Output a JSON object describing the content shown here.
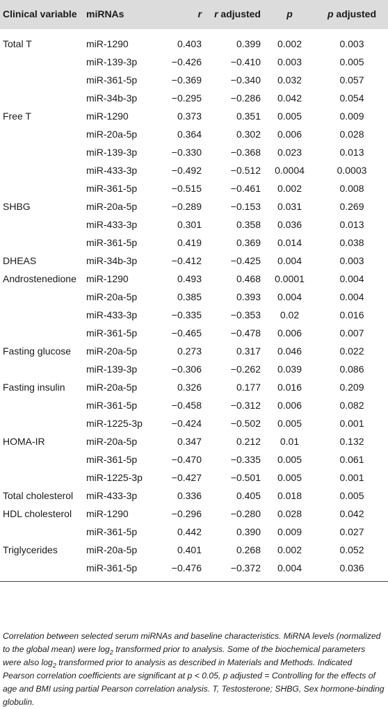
{
  "table": {
    "headers": {
      "clinical_variable": "Clinical variable",
      "mirnas": "miRNAs",
      "r": "r",
      "r_adjusted_italic": "r",
      "r_adjusted_rest": " adjusted",
      "p": "p",
      "p_adjusted_italic": "p",
      "p_adjusted_rest": " adjusted"
    },
    "rows": [
      {
        "variable": "Total T",
        "mirna": "miR-1290",
        "r": "0.403",
        "r_adj": "0.399",
        "p": "0.002",
        "p_adj": "0.003"
      },
      {
        "variable": "",
        "mirna": "miR-139-3p",
        "r": "−0.426",
        "r_adj": "−0.410",
        "p": "0.003",
        "p_adj": "0.005"
      },
      {
        "variable": "",
        "mirna": "miR-361-5p",
        "r": "−0.369",
        "r_adj": "−0.340",
        "p": "0.032",
        "p_adj": "0.057"
      },
      {
        "variable": "",
        "mirna": "miR-34b-3p",
        "r": "−0.295",
        "r_adj": "−0.286",
        "p": "0.042",
        "p_adj": "0.054"
      },
      {
        "variable": "Free T",
        "mirna": "miR-1290",
        "r": "0.373",
        "r_adj": "0.351",
        "p": "0.005",
        "p_adj": "0.009"
      },
      {
        "variable": "",
        "mirna": "miR-20a-5p",
        "r": "0.364",
        "r_adj": "0.302",
        "p": "0.006",
        "p_adj": "0.028"
      },
      {
        "variable": "",
        "mirna": "miR-139-3p",
        "r": "−0.330",
        "r_adj": "−0.368",
        "p": "0.023",
        "p_adj": "0.013"
      },
      {
        "variable": "",
        "mirna": "miR-433-3p",
        "r": "−0.492",
        "r_adj": "−0.512",
        "p": "0.0004",
        "p_adj": "0.0003"
      },
      {
        "variable": "",
        "mirna": "miR-361-5p",
        "r": "−0.515",
        "r_adj": "−0.461",
        "p": "0.002",
        "p_adj": "0.008"
      },
      {
        "variable": "SHBG",
        "mirna": "miR-20a-5p",
        "r": "−0.289",
        "r_adj": "−0.153",
        "p": "0.031",
        "p_adj": "0.269"
      },
      {
        "variable": "",
        "mirna": "miR-433-3p",
        "r": "0.301",
        "r_adj": "0.358",
        "p": "0.036",
        "p_adj": "0.013"
      },
      {
        "variable": "",
        "mirna": "miR-361-5p",
        "r": "0.419",
        "r_adj": "0.369",
        "p": "0.014",
        "p_adj": "0.038"
      },
      {
        "variable": "DHEAS",
        "mirna": "miR-34b-3p",
        "r": "−0.412",
        "r_adj": "−0.425",
        "p": "0.004",
        "p_adj": "0.003"
      },
      {
        "variable": "Androstenedione",
        "mirna": "miR-1290",
        "r": "0.493",
        "r_adj": "0.468",
        "p": "0.0001",
        "p_adj": "0.004"
      },
      {
        "variable": "",
        "mirna": "miR-20a-5p",
        "r": "0.385",
        "r_adj": "0.393",
        "p": "0.004",
        "p_adj": "0.004"
      },
      {
        "variable": "",
        "mirna": "miR-433-3p",
        "r": "−0.335",
        "r_adj": "−0.353",
        "p": "0.02",
        "p_adj": "0.016"
      },
      {
        "variable": "",
        "mirna": "miR-361-5p",
        "r": "−0.465",
        "r_adj": "−0.478",
        "p": "0.006",
        "p_adj": "0.007"
      },
      {
        "variable": "Fasting glucose",
        "mirna": "miR-20a-5p",
        "r": "0.273",
        "r_adj": "0.317",
        "p": "0.046",
        "p_adj": "0.022"
      },
      {
        "variable": "",
        "mirna": "miR-139-3p",
        "r": "−0.306",
        "r_adj": "−0.262",
        "p": "0.039",
        "p_adj": "0.086"
      },
      {
        "variable": "Fasting insulin",
        "mirna": "miR-20a-5p",
        "r": "0.326",
        "r_adj": "0.177",
        "p": "0.016",
        "p_adj": "0.209"
      },
      {
        "variable": "",
        "mirna": "miR-361-5p",
        "r": "−0.458",
        "r_adj": "−0.312",
        "p": "0.006",
        "p_adj": "0.082"
      },
      {
        "variable": "",
        "mirna": "miR-1225-3p",
        "r": "−0.424",
        "r_adj": "−0.502",
        "p": "0.005",
        "p_adj": "0.001"
      },
      {
        "variable": "HOMA-IR",
        "mirna": "miR-20a-5p",
        "r": "0.347",
        "r_adj": "0.212",
        "p": "0.01",
        "p_adj": "0.132"
      },
      {
        "variable": "",
        "mirna": "miR-361-5p",
        "r": "−0.470",
        "r_adj": "−0.335",
        "p": "0.005",
        "p_adj": "0.061"
      },
      {
        "variable": "",
        "mirna": "miR-1225-3p",
        "r": "−0.427",
        "r_adj": "−0.501",
        "p": "0.005",
        "p_adj": "0.001"
      },
      {
        "variable": "Total cholesterol",
        "mirna": "miR-433-3p",
        "r": "0.336",
        "r_adj": "0.405",
        "p": "0.018",
        "p_adj": "0.005"
      },
      {
        "variable": "HDL cholesterol",
        "mirna": "miR-1290",
        "r": "−0.296",
        "r_adj": "−0.280",
        "p": "0.028",
        "p_adj": "0.042"
      },
      {
        "variable": "",
        "mirna": "miR-361-5p",
        "r": "0.442",
        "r_adj": "0.390",
        "p": "0.009",
        "p_adj": "0.027"
      },
      {
        "variable": "Triglycerides",
        "mirna": "miR-20a-5p",
        "r": "0.401",
        "r_adj": "0.268",
        "p": "0.002",
        "p_adj": "0.052"
      },
      {
        "variable": "",
        "mirna": "miR-361-5p",
        "r": "−0.476",
        "r_adj": "−0.372",
        "p": "0.004",
        "p_adj": "0.036"
      }
    ]
  },
  "caption": {
    "part1": "Correlation between selected serum miRNAs and baseline characteristics. MiRNA levels (normalized to the global mean) were log",
    "sub1": "2",
    "part2": " transformed prior to analysis. Some of the biochemical parameters were also log",
    "sub2": "2",
    "part3": " transformed prior to analysis as described in Materials and Methods. Indicated Pearson correlation coefficients are significant at p < 0.05, p adjusted = Controlling for the effects of age and BMI using partial Pearson correlation analysis. T, Testosterone; SHBG, Sex hormone-binding globulin."
  }
}
